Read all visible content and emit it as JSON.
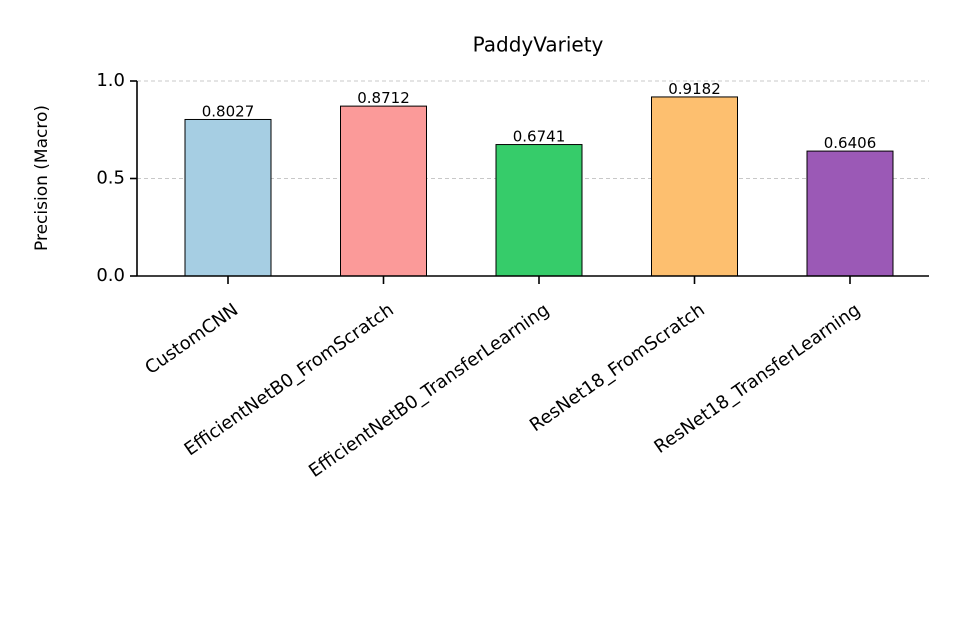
{
  "chart_data": {
    "type": "bar",
    "title": "PaddyVariety",
    "ylabel": "Precision (Macro)",
    "categories": [
      "CustomCNN",
      "EfficientNetB0_FromScratch",
      "EfficientNetB0_TransferLearning",
      "ResNet18_FromScratch",
      "ResNet18_TransferLearning"
    ],
    "values": [
      0.8027,
      0.8712,
      0.6741,
      0.9182,
      0.6406
    ],
    "colors": [
      "#a6cee3",
      "#fb9a99",
      "#36cc6a",
      "#fdbf6f",
      "#9b59b6"
    ],
    "ylim": [
      0,
      1
    ],
    "yticks": [
      {
        "value": 0,
        "label": "0.0"
      },
      {
        "value": 0.5,
        "label": "0.5"
      },
      {
        "value": 1,
        "label": "1.0"
      }
    ],
    "grid": true
  }
}
